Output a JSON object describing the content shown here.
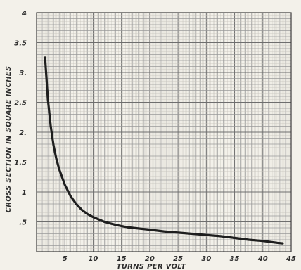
{
  "chart_data": {
    "type": "line",
    "title": "",
    "xlabel": "TURNS PER VOLT",
    "ylabel": "CROSS SECTION IN SQUARE INCHES",
    "xlim": [
      0,
      45
    ],
    "ylim": [
      0,
      4
    ],
    "grid": true,
    "x_ticks": [
      5,
      10,
      15,
      20,
      25,
      30,
      35,
      40,
      45
    ],
    "x_tick_labels": [
      "5",
      "10",
      "15",
      "20",
      "25",
      "30",
      "35",
      "40",
      "45"
    ],
    "y_ticks": [
      0.5,
      1,
      1.5,
      2,
      2.5,
      3,
      3.5,
      4
    ],
    "y_tick_labels": [
      ".5",
      "1",
      "1.5",
      "2.",
      "2.5",
      "3.",
      "3.5",
      "4"
    ],
    "series": [
      {
        "x": [
          1.5,
          2,
          2.5,
          3,
          3.5,
          4,
          5,
          6,
          7,
          8,
          9,
          10,
          12,
          14,
          16,
          18,
          20,
          22.5,
          25,
          27.5,
          30,
          32.5,
          35,
          37.5,
          40,
          42.5,
          43.5
        ],
        "y": [
          3.25,
          2.55,
          2.1,
          1.78,
          1.55,
          1.38,
          1.12,
          0.93,
          0.8,
          0.7,
          0.63,
          0.58,
          0.5,
          0.45,
          0.41,
          0.39,
          0.37,
          0.34,
          0.32,
          0.3,
          0.28,
          0.26,
          0.23,
          0.2,
          0.18,
          0.15,
          0.14
        ]
      }
    ]
  }
}
